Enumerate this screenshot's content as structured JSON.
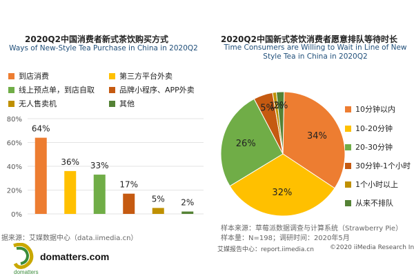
{
  "left_chart": {
    "title_zh": "2020Q2中国消费者新式茶饮购买方式",
    "title_en": "Ways of New-Style Tea Purchase in China in 2020Q2",
    "legend": [
      {
        "label": "到店消费",
        "color": "#ed7d31"
      },
      {
        "label": "第三方平台外卖",
        "color": "#ffc000"
      },
      {
        "label": "线上预点单，到店自取",
        "color": "#70ad47"
      },
      {
        "label": "品牌小程序、APP外卖",
        "color": "#c55a11"
      },
      {
        "label": "无人售卖机",
        "color": "#bf9000"
      },
      {
        "label": "其他",
        "color": "#548235"
      }
    ],
    "source": "据来源：艾媒数据中心（data.iimedia.cn）"
  },
  "right_chart": {
    "title_zh": "2020Q2中国新式茶饮消费者愿意排队等待时长",
    "title_en": "Time Consumers are Willing to Wait in Line of New Style Tea in China in 2020Q2",
    "legend": [
      {
        "label": "10分钟以内",
        "color": "#ed7d31"
      },
      {
        "label": "10-20分钟",
        "color": "#ffc000"
      },
      {
        "label": "20-30分钟",
        "color": "#70ad47"
      },
      {
        "label": "30分钟-1个小时",
        "color": "#c55a11"
      },
      {
        "label": "1个小时以上",
        "color": "#bf9000"
      },
      {
        "label": "从来不排队",
        "color": "#548235"
      }
    ],
    "source_line1": "样本来源：草莓派数据调查与计算系统（Strawberry Pie）",
    "source_line2": "样本量：N=198；调研时间：2020年5月"
  },
  "footer": {
    "report": "艾媒报告中心：report.iimedia.cn",
    "copyright": "©2020  iiMedia Research  Inc"
  },
  "watermark": {
    "site": "domatters.com",
    "brand": "domatters"
  },
  "chart_data": [
    {
      "type": "bar",
      "categories": [
        "到店消费",
        "第三方平台外卖",
        "线上预点单，到店自取",
        "品牌小程序、APP外卖",
        "无人售卖机",
        "其他"
      ],
      "values": [
        64,
        36,
        33,
        17,
        5,
        2
      ],
      "value_labels": [
        "64%",
        "36%",
        "33%",
        "17%",
        "5%",
        "2%"
      ],
      "y_ticks": [
        "0%",
        "20%",
        "40%",
        "60%",
        "80%"
      ],
      "ylim": [
        0,
        80
      ],
      "colors": [
        "#ed7d31",
        "#ffc000",
        "#70ad47",
        "#c55a11",
        "#bf9000",
        "#548235"
      ],
      "grid": true,
      "legend": "top"
    },
    {
      "type": "pie",
      "categories": [
        "10分钟以内",
        "10-20分钟",
        "20-30分钟",
        "30分钟-1个小时",
        "1个小时以上",
        "从来不排队"
      ],
      "values": [
        34,
        32,
        26,
        5,
        1,
        2
      ],
      "value_labels": [
        "34%",
        "32%",
        "26%",
        "5%",
        "1%",
        "2%"
      ],
      "colors": [
        "#ed7d31",
        "#ffc000",
        "#70ad47",
        "#c55a11",
        "#bf9000",
        "#548235"
      ],
      "legend": "right"
    }
  ]
}
